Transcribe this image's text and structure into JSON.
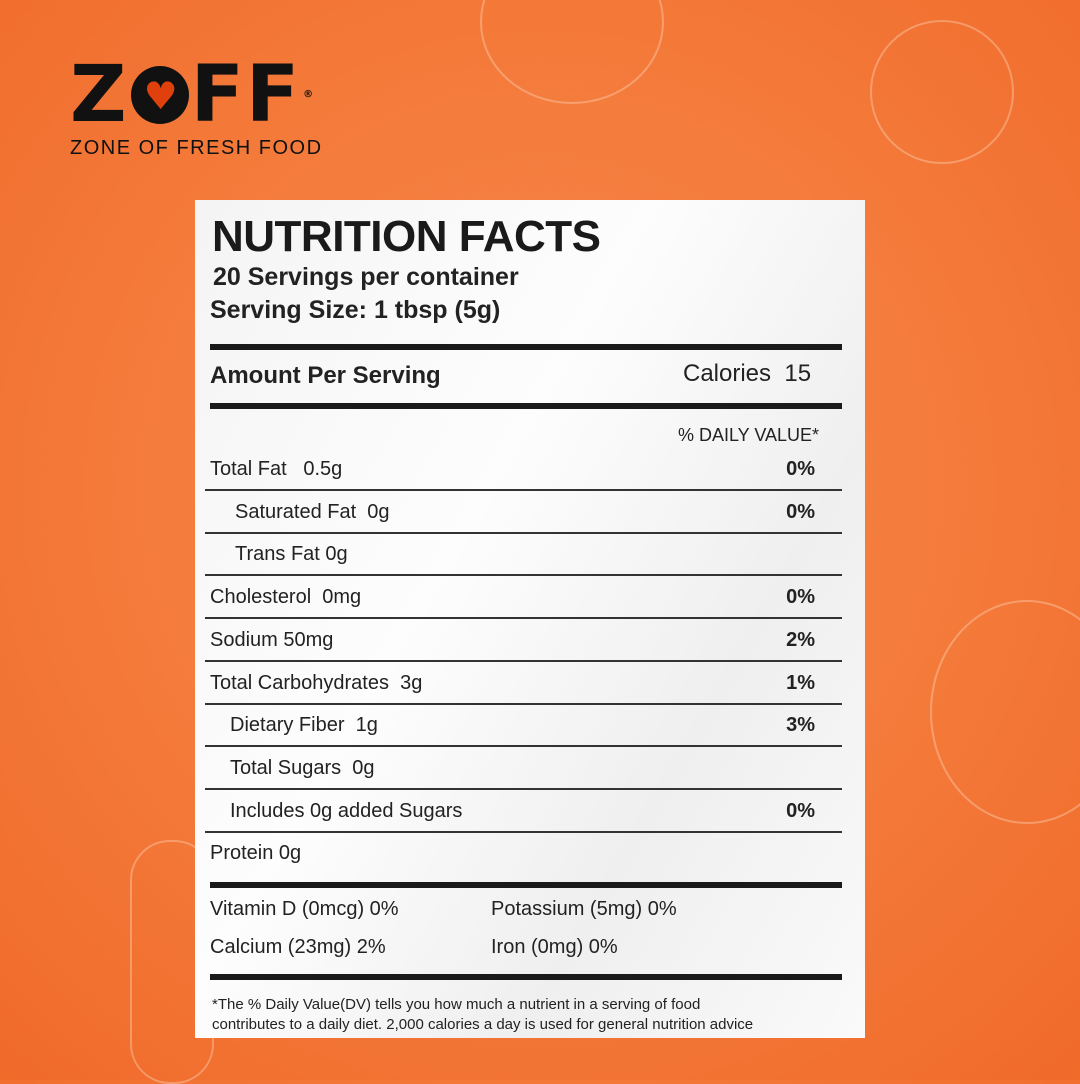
{
  "brand": {
    "name_left": "Z",
    "name_right": "FF",
    "registered": "®",
    "tagline": "ZONE OF FRESH FOOD",
    "accent": "#f47a3a",
    "heart_color": "#e0400c"
  },
  "label": {
    "title": "NUTRITION FACTS",
    "servings": "20 Servings per container",
    "serving_size": "Serving Size: 1 tbsp (5g)",
    "amount_per_serving": "Amount Per Serving",
    "calories_label": "Calories",
    "calories_value": "15",
    "dv_header": "% DAILY VALUE*",
    "rows": [
      {
        "name": "Total Fat   0.5g",
        "dv": "0%",
        "indent": false
      },
      {
        "name": "Saturated Fat  0g",
        "dv": "0%",
        "indent": true
      },
      {
        "name": "Trans Fat 0g",
        "dv": "",
        "indent": true
      },
      {
        "name": "Cholesterol  0mg",
        "dv": "0%",
        "indent": false
      },
      {
        "name": "Sodium 50mg",
        "dv": "2%",
        "indent": false
      },
      {
        "name": "Total Carbohydrates  3g",
        "dv": "1%",
        "indent": false
      },
      {
        "name": "Dietary Fiber  1g",
        "dv": "3%",
        "indent": true
      },
      {
        "name": "Total Sugars  0g",
        "dv": "",
        "indent": true
      },
      {
        "name": "Includes 0g added Sugars",
        "dv": "0%",
        "indent": true
      },
      {
        "name": "Protein 0g",
        "dv": "",
        "indent": false
      }
    ],
    "vitamins": [
      "Vitamin D (0mcg) 0%",
      "Potassium (5mg) 0%",
      "Calcium (23mg) 2%",
      "Iron (0mg) 0%"
    ],
    "footnote_1": "*The % Daily Value(DV) tells you how much a nutrient in a serving of food",
    "footnote_2": "contributes to a daily diet. 2,000 calories a day is used for general nutrition advice"
  }
}
